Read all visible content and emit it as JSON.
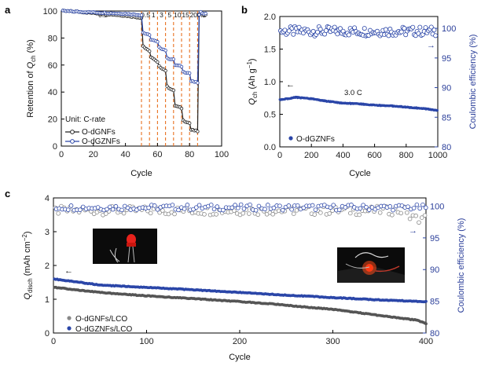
{
  "colors": {
    "black": "#222222",
    "blue": "#2b46a8",
    "gray": "#888888",
    "orange": "#e8701f",
    "red": "#e8221c"
  },
  "chart_data": [
    {
      "panel": "a",
      "type": "line",
      "xlabel": "Cycle",
      "ylabel_parts": [
        "Retention of ",
        "Q",
        "ch",
        " (%)"
      ],
      "xlim": [
        0,
        100
      ],
      "ylim": [
        0,
        100
      ],
      "xticks": [
        "0",
        "20",
        "40",
        "60",
        "80",
        "100"
      ],
      "yticks": [
        "0",
        "20",
        "40",
        "60",
        "80",
        "100"
      ],
      "rates": [
        {
          "label": "0.2",
          "x": 26
        },
        {
          "label": "0.5",
          "x": 52.5
        },
        {
          "label": "1",
          "x": 57.5
        },
        {
          "label": "3",
          "x": 62.5
        },
        {
          "label": "5",
          "x": 67.5
        },
        {
          "label": "10",
          "x": 72.5
        },
        {
          "label": "15",
          "x": 77.5
        },
        {
          "label": "20",
          "x": 82.5
        },
        {
          "label": "0.2",
          "x": 87.5
        }
      ],
      "boundaries": [
        50,
        55,
        60,
        65,
        70,
        75,
        80,
        85
      ],
      "annotation": "Unit: C-rate",
      "series": [
        {
          "name": "O-dGNFs",
          "x": [
            1,
            10,
            20,
            30,
            40,
            50,
            51,
            55,
            56,
            60,
            61,
            65,
            66,
            70,
            71,
            75,
            76,
            80,
            81,
            85,
            86,
            87,
            90
          ],
          "y": [
            100,
            99.5,
            98.5,
            97.5,
            96.5,
            95,
            74,
            70,
            66,
            62,
            59,
            56,
            44,
            41,
            30,
            28,
            19,
            17,
            12,
            11,
            97,
            98,
            97
          ]
        },
        {
          "name": "O-dGZNFs",
          "x": [
            1,
            10,
            20,
            30,
            40,
            50,
            51,
            55,
            56,
            60,
            61,
            65,
            66,
            70,
            71,
            75,
            76,
            80,
            81,
            85,
            86,
            87,
            90
          ],
          "y": [
            100,
            99.5,
            99,
            98.5,
            98,
            97,
            84,
            82,
            79,
            77,
            73,
            71,
            65,
            64,
            60,
            59,
            55,
            54,
            48,
            47,
            97,
            99,
            98
          ]
        }
      ]
    },
    {
      "panel": "b",
      "type": "scatter",
      "xlabel": "Cycle",
      "ylabel_parts": [
        "Q",
        "ch",
        " (Ah g",
        "−1",
        ")"
      ],
      "y2label": "Coulombic efficiency (%)",
      "xlim": [
        0,
        1000
      ],
      "ylim": [
        0,
        2.0
      ],
      "y2lim": [
        80,
        102
      ],
      "xticks": [
        "0",
        "200",
        "400",
        "600",
        "800",
        "1000"
      ],
      "yticks": [
        "0.0",
        "0.5",
        "1.0",
        "1.5",
        "2.0"
      ],
      "y2ticks": [
        "80",
        "85",
        "90",
        "95",
        "100"
      ],
      "annotation": "3.0 C",
      "series": [
        {
          "name": "O-dGZNFs capacity",
          "x": [
            0,
            100,
            200,
            300,
            400,
            500,
            600,
            700,
            800,
            900,
            1000
          ],
          "y": [
            0.72,
            0.76,
            0.74,
            0.7,
            0.67,
            0.66,
            0.64,
            0.63,
            0.61,
            0.59,
            0.56
          ]
        },
        {
          "name": "Coulombic efficiency",
          "x": [
            0,
            1000
          ],
          "y": [
            99.5,
            99.5
          ]
        }
      ],
      "legend": [
        "O-dGZNFs"
      ]
    },
    {
      "panel": "c",
      "type": "scatter",
      "xlabel": "Cycle",
      "ylabel_parts": [
        "Q",
        "disch",
        " (mAh cm",
        "−2",
        ")"
      ],
      "y2label": "Coulombic efficiency (%)",
      "xlim": [
        0,
        400
      ],
      "ylim": [
        0,
        4
      ],
      "y2lim": [
        80,
        101.3
      ],
      "xticks": [
        "0",
        "100",
        "200",
        "300",
        "400"
      ],
      "yticks": [
        "0",
        "1",
        "2",
        "3",
        "4"
      ],
      "y2ticks": [
        "80",
        "85",
        "90",
        "95",
        "100"
      ],
      "series": [
        {
          "name": "O-dGNFs/LCO",
          "x": [
            1,
            50,
            100,
            150,
            200,
            240,
            250,
            300,
            350,
            390,
            400
          ],
          "y": [
            1.35,
            1.2,
            1.1,
            1.02,
            0.93,
            0.85,
            0.82,
            0.7,
            0.52,
            0.38,
            0.28
          ]
        },
        {
          "name": "O-dGZNFs/LCO",
          "x": [
            1,
            50,
            100,
            150,
            200,
            250,
            300,
            350,
            400
          ],
          "y": [
            1.6,
            1.42,
            1.35,
            1.28,
            1.2,
            1.12,
            1.05,
            0.98,
            0.93
          ]
        },
        {
          "name": "O-dGNFs/LCO CE",
          "x": [
            1,
            400
          ],
          "y": [
            99.3,
            99.3
          ]
        },
        {
          "name": "O-dGZNFs/LCO CE",
          "x": [
            1,
            400
          ],
          "y": [
            99.8,
            99.8
          ]
        }
      ],
      "legend": [
        "O-dGNFs/LCO",
        "O-dGZNFs/LCO"
      ]
    }
  ]
}
